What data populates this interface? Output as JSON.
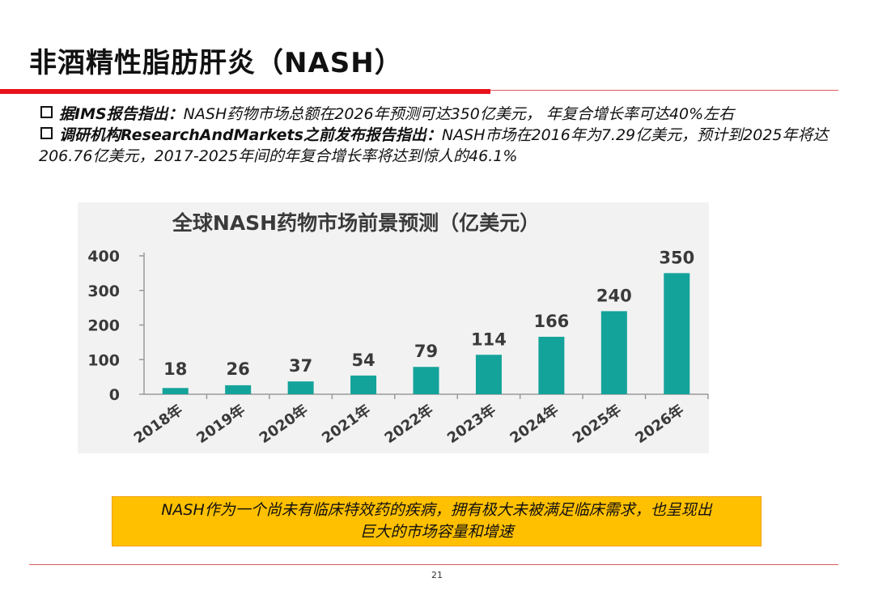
{
  "slide": {
    "title": "非酒精性脂肪肝炎（NASH）",
    "accent_color": "#e8121b",
    "rule_color": "#e05a5f",
    "page_number": "21"
  },
  "bullets": [
    {
      "lead": "据IMS报告指出：",
      "body": "NASH药物市场总额在2026年预测可达350亿美元， 年复合增长率可达40%左右"
    },
    {
      "lead": "调研机构ResearchAndMarkets之前发布报告指出：",
      "body": "NASH市场在2016年为7.29亿美元，预计到2025年将达206.76亿美元，2017-2025年间的年复合增长率将达到惊人的46.1%"
    }
  ],
  "chart_data": {
    "type": "bar",
    "title": "全球NASH药物市场前景预测（亿美元）",
    "categories": [
      "2018年",
      "2019年",
      "2020年",
      "2021年",
      "2022年",
      "2023年",
      "2024年",
      "2025年",
      "2026年"
    ],
    "values": [
      18,
      26,
      37,
      54,
      79,
      114,
      166,
      240,
      350
    ],
    "ylim": [
      0,
      400
    ],
    "yticks": [
      0,
      100,
      200,
      300,
      400
    ],
    "bar_color": "#14a39a",
    "background": "#f2f2f2",
    "grid": false,
    "data_labels": true
  },
  "callout": {
    "line1": "NASH作为一个尚未有临床特效药的疾病，拥有极大未被满足临床需求，也呈现出",
    "line2": "巨大的市场容量和增速",
    "background": "#ffc000",
    "border": "#f0a000"
  }
}
